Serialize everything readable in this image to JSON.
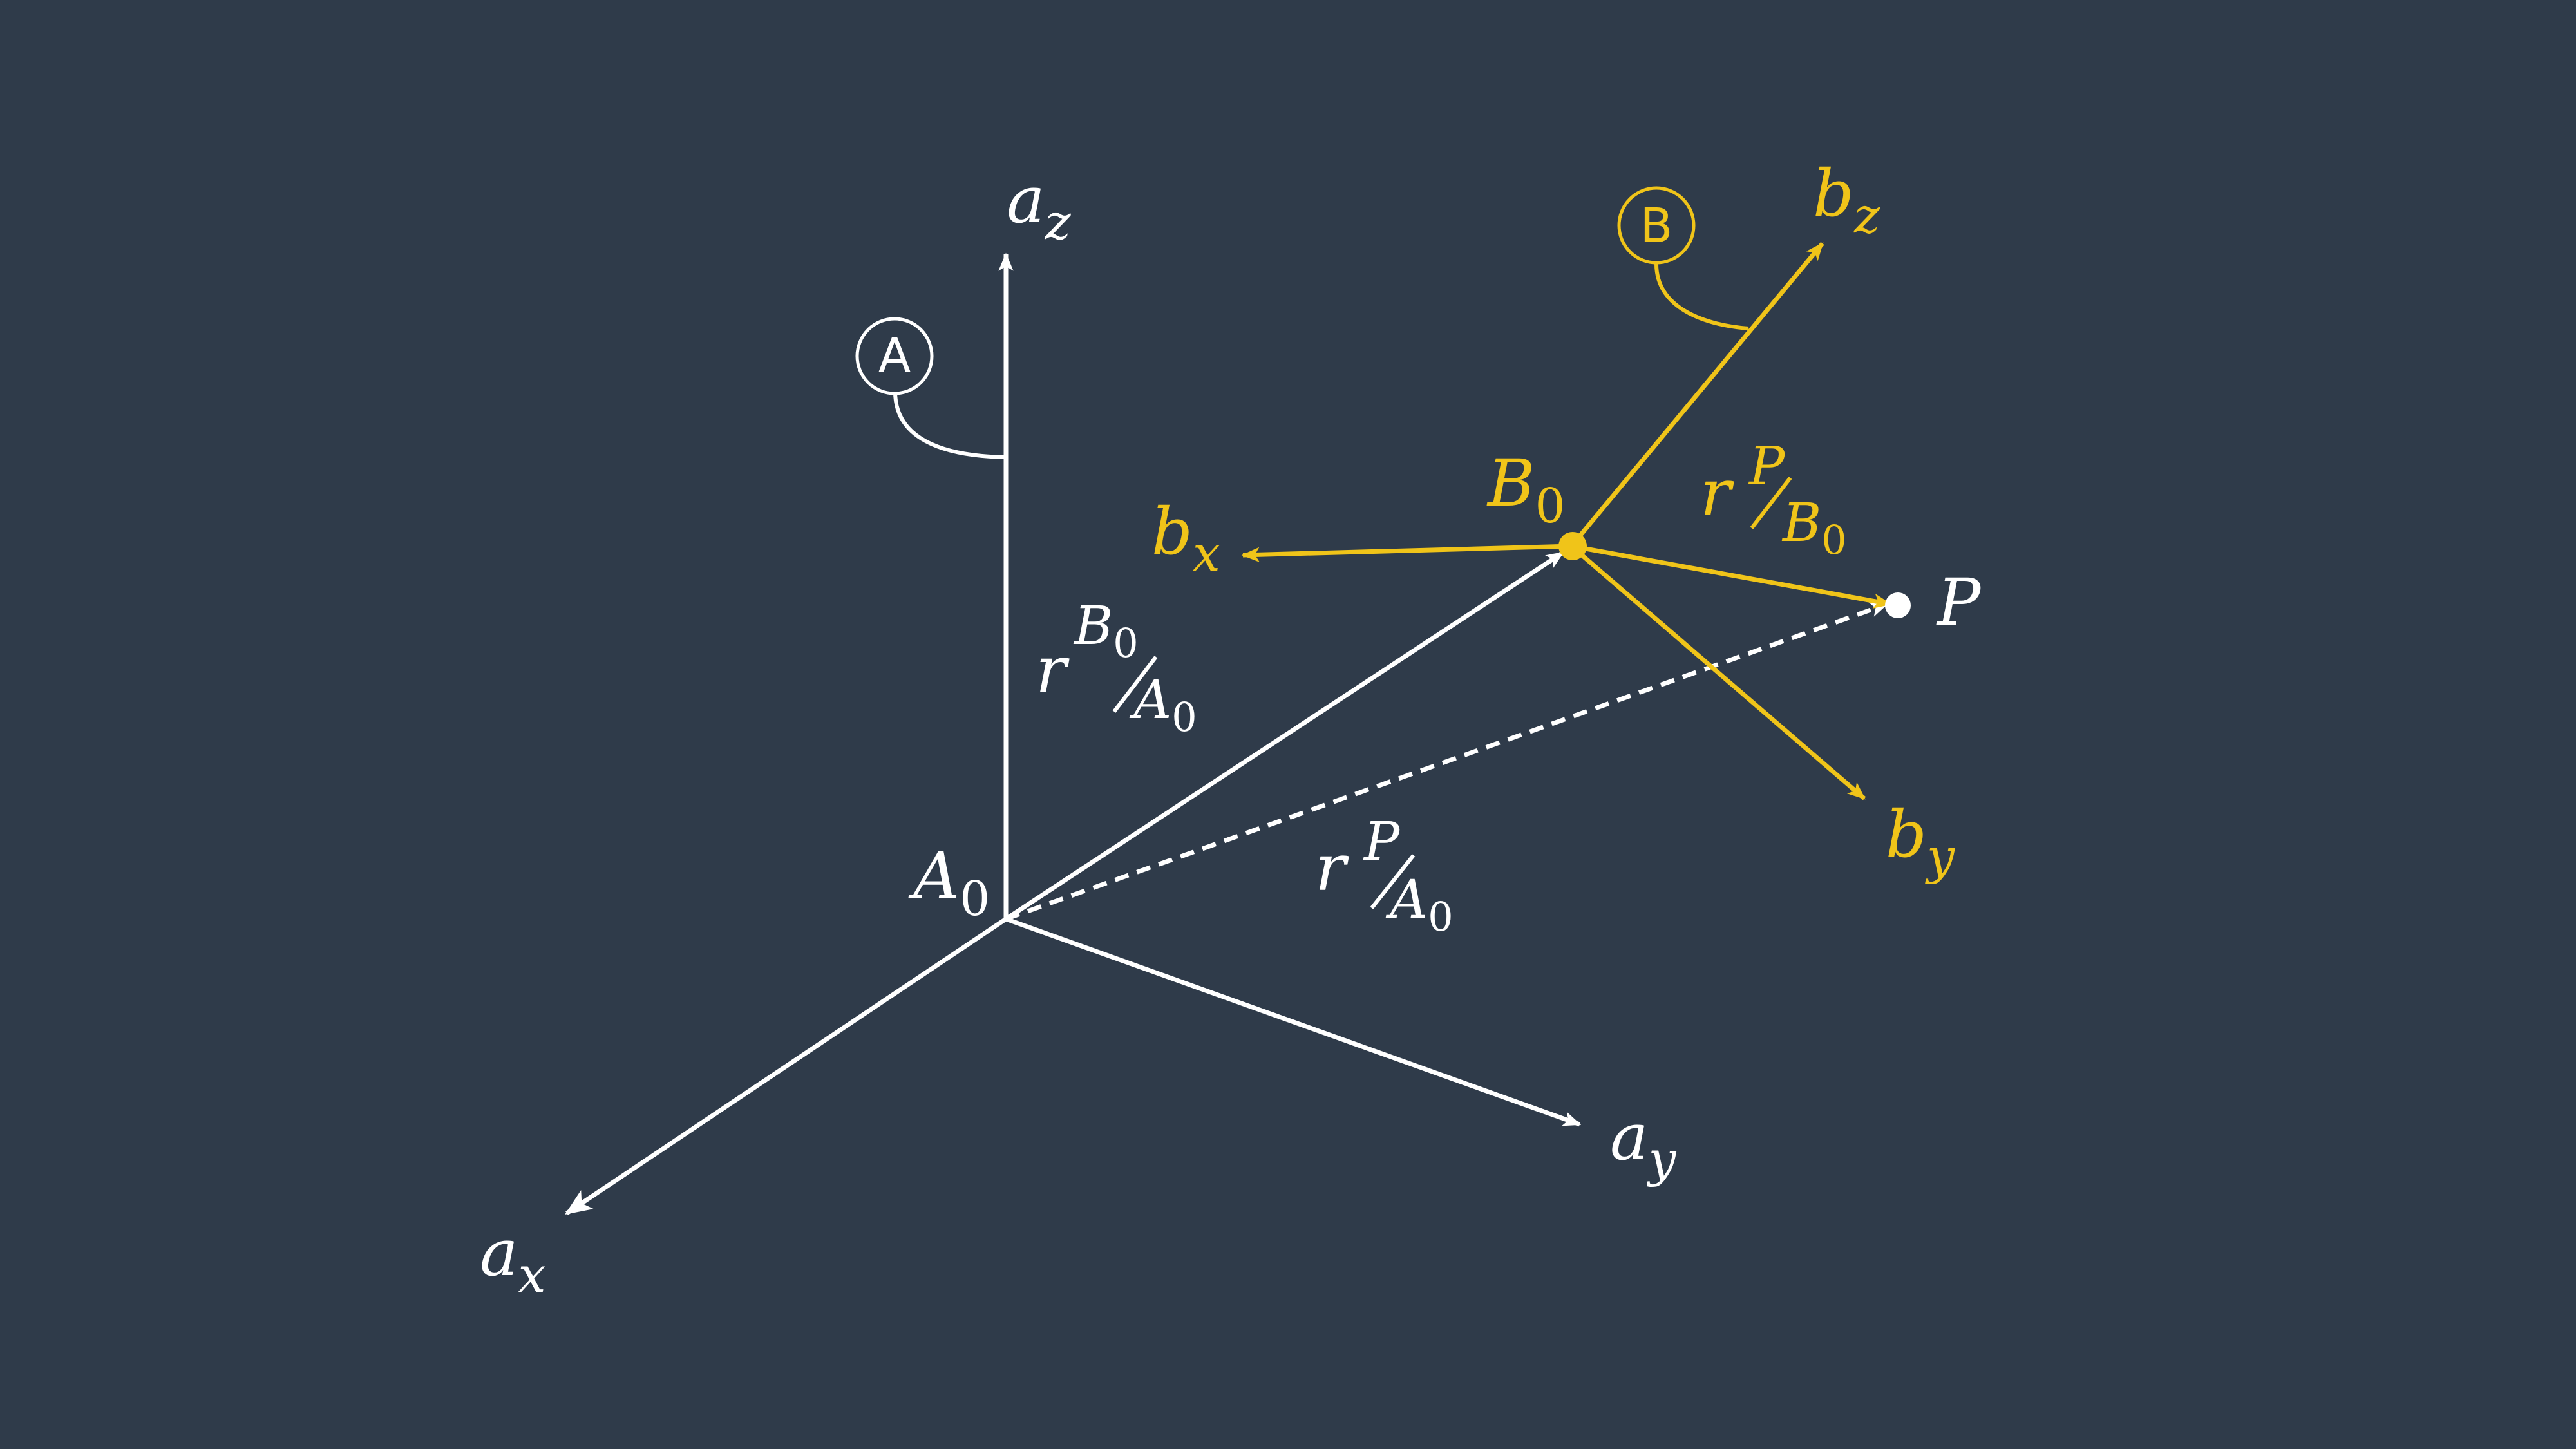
{
  "colors": {
    "background": "#2f3b4a",
    "frame_a": "#ffffff",
    "frame_b": "#f0c419"
  },
  "frame_a": {
    "badge": "A",
    "origin": {
      "base": "A",
      "sub": "0"
    },
    "axis_x": {
      "base": "a",
      "sub": "x"
    },
    "axis_y": {
      "base": "a",
      "sub": "y"
    },
    "axis_z": {
      "base": "a",
      "sub": "z"
    }
  },
  "frame_b": {
    "badge": "B",
    "origin": {
      "base": "B",
      "sub": "0"
    },
    "axis_x": {
      "base": "b",
      "sub": "x"
    },
    "axis_y": {
      "base": "b",
      "sub": "y"
    },
    "axis_z": {
      "base": "b",
      "sub": "z"
    }
  },
  "point": {
    "label": "P"
  },
  "vectors": {
    "r_b0_a0": {
      "r": "r",
      "top": "B",
      "top_sub": "0",
      "bottom": "A",
      "bottom_sub": "0"
    },
    "r_p_a0": {
      "r": "r",
      "top": "P",
      "bottom": "A",
      "bottom_sub": "0"
    },
    "r_p_b0": {
      "r": "r",
      "top": "P",
      "bottom": "B",
      "bottom_sub": "0"
    }
  }
}
